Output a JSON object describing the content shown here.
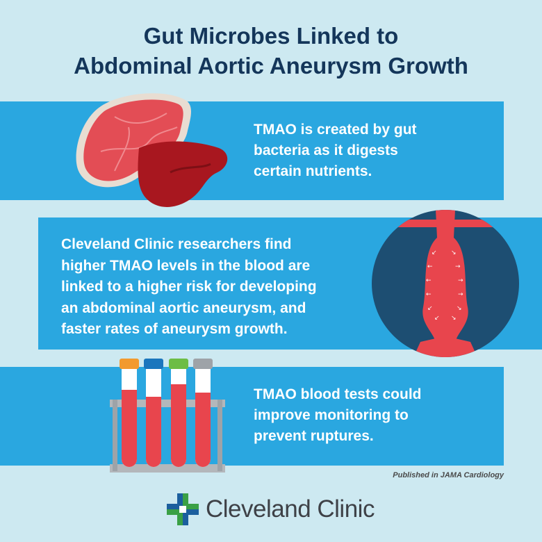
{
  "title": {
    "line1": "Gut Microbes Linked to",
    "line2": "Abdominal Aortic Aneurysm Growth"
  },
  "sections": [
    {
      "lines": [
        "TMAO is created by gut",
        "bacteria as it digests",
        "certain nutrients."
      ],
      "icon": "meat-icon"
    },
    {
      "lines": [
        "Cleveland Clinic researchers find",
        "higher TMAO levels in the blood are",
        "linked to a higher risk for developing",
        "an abdominal aortic aneurysm, and",
        "faster rates of aneurysm growth."
      ],
      "icon": "aorta-aneurysm-icon"
    },
    {
      "lines": [
        "TMAO blood tests could",
        "improve monitoring to",
        "prevent ruptures."
      ],
      "icon": "blood-test-tubes-icon"
    }
  ],
  "source": "Published in JAMA Cardiology",
  "logo": {
    "text": "Cleveland Clinic",
    "icon": "cleveland-clinic-cross-icon"
  },
  "colors": {
    "background": "#cde9f1",
    "band": "#2aa7e0",
    "title": "#14365a",
    "circle": "#1d4e72",
    "blood": "#e8454d",
    "logo_green": "#3aa046",
    "logo_blue": "#1b5f9e"
  }
}
